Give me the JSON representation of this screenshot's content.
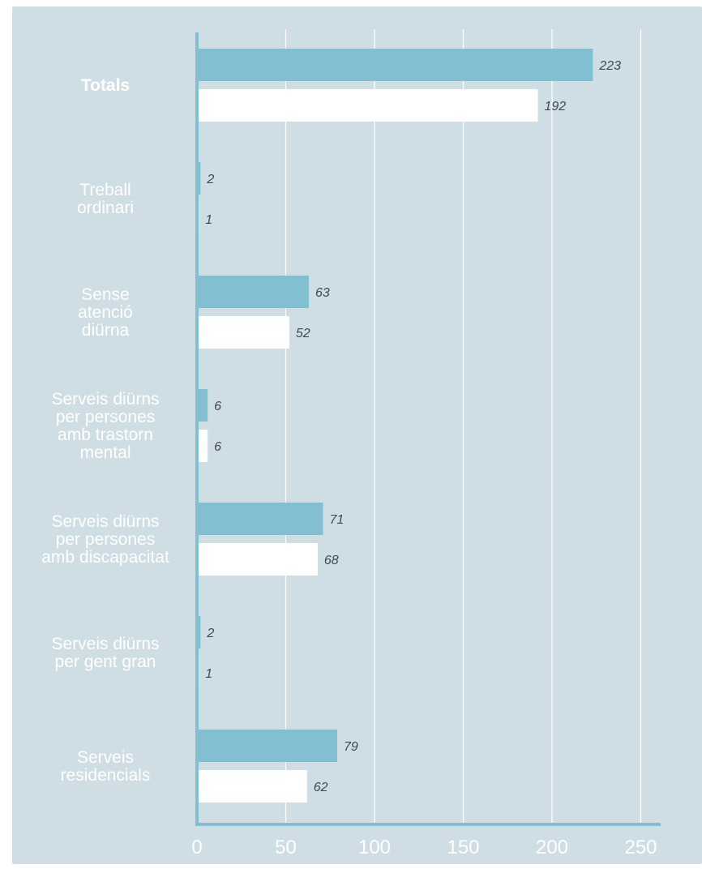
{
  "chart_data": {
    "type": "bar",
    "orientation": "horizontal",
    "categories": [
      "Totals",
      "Treball ordinari",
      "Sense atenció diürna",
      "Serveis diürns per persones amb trastorn mental",
      "Serveis diürns per persones amb discapacitat",
      "Serveis diürns per gent gran",
      "Serveis residencials"
    ],
    "category_lines": [
      [
        "Totals"
      ],
      [
        "Treball",
        "ordinari"
      ],
      [
        "Sense",
        "atenció",
        "diürna"
      ],
      [
        "Serveis diürns",
        "per persones",
        "amb trastorn",
        "mental"
      ],
      [
        "Serveis diürns",
        "per persones",
        "amb discapacitat"
      ],
      [
        "Serveis diürns",
        "per gent gran"
      ],
      [
        "Serveis",
        "residencials"
      ]
    ],
    "bold_categories": [
      "Totals"
    ],
    "series": [
      {
        "values": [
          223,
          2,
          63,
          6,
          71,
          2,
          79
        ],
        "color": "#82bfd1"
      },
      {
        "values": [
          192,
          1,
          52,
          6,
          68,
          1,
          62
        ],
        "color": "#ffffff"
      }
    ],
    "xlim": [
      0,
      262
    ],
    "xticks": [
      "0",
      "50",
      "100",
      "150",
      "200",
      "250"
    ],
    "xtick_values": [
      0,
      50,
      100,
      150,
      200,
      250
    ],
    "grid": true,
    "legend": "none"
  },
  "colors": {
    "background": "#cfdee5",
    "axis": "#82bfd1",
    "grid": "#ffffff",
    "value_text": "#3d4a52"
  }
}
